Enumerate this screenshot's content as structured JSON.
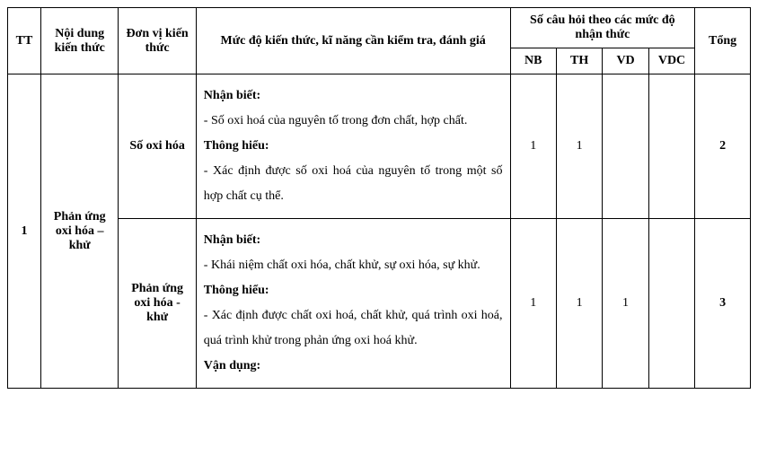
{
  "header": {
    "tt": "TT",
    "noidung": "Nội dung kiến thức",
    "donvi": "Đơn vị kiến thức",
    "mucdo": "Mức độ kiến thức, kĩ năng cần kiểm tra, đánh giá",
    "socau_group": "Số câu hỏi theo các mức độ nhận thức",
    "nb": "NB",
    "th": "TH",
    "vd": "VD",
    "vdc": "VDC",
    "tong": "Tổng"
  },
  "rows": [
    {
      "tt": "1",
      "noidung": "Phản ứng oxi hóa – khử",
      "units": [
        {
          "donvi": "Số oxi hóa",
          "desc_parts": {
            "p1_label": "Nhận biết:",
            "p1_text": "- Số oxi hoá của nguyên tố trong đơn chất, hợp chất.",
            "p2_label": "Thông hiểu:",
            "p2_text": "- Xác định được số oxi hoá của nguyên tố trong một số hợp chất cụ thể."
          },
          "nb": "1",
          "th": "1",
          "vd": "",
          "vdc": "",
          "tong": "2"
        },
        {
          "donvi": "Phản ứng oxi hóa - khử",
          "desc_parts": {
            "p1_label": "Nhận biết:",
            "p1_text": "- Khái niệm chất oxi hóa, chất khử, sự oxi hóa, sự khử.",
            "p2_label": "Thông hiểu:",
            "p2_text": "- Xác định được chất oxi hoá, chất khử, quá trình oxi hoá, quá trình khử trong phản ứng oxi hoá khử.",
            "p3_label": "Vận dụng:"
          },
          "nb": "1",
          "th": "1",
          "vd": "1",
          "vdc": "",
          "tong": "3"
        }
      ]
    }
  ]
}
